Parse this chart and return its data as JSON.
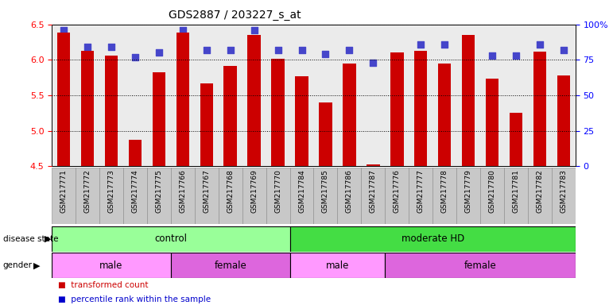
{
  "title": "GDS2887 / 203227_s_at",
  "samples": [
    "GSM217771",
    "GSM217772",
    "GSM217773",
    "GSM217774",
    "GSM217775",
    "GSM217766",
    "GSM217767",
    "GSM217768",
    "GSM217769",
    "GSM217770",
    "GSM217784",
    "GSM217785",
    "GSM217786",
    "GSM217787",
    "GSM217776",
    "GSM217777",
    "GSM217778",
    "GSM217779",
    "GSM217780",
    "GSM217781",
    "GSM217782",
    "GSM217783"
  ],
  "bar_values": [
    6.38,
    6.13,
    6.06,
    4.87,
    5.83,
    6.38,
    5.67,
    5.92,
    6.35,
    6.01,
    5.77,
    5.4,
    5.95,
    4.53,
    6.1,
    6.13,
    5.95,
    6.35,
    5.73,
    5.25,
    6.12,
    5.78
  ],
  "percentile_values": [
    96,
    84,
    84,
    77,
    80,
    96,
    82,
    82,
    96,
    82,
    82,
    79,
    82,
    73,
    74,
    86,
    86,
    82,
    78,
    78,
    86,
    82
  ],
  "ylim_left": [
    4.5,
    6.5
  ],
  "ylim_right": [
    0,
    100
  ],
  "yticks_left": [
    4.5,
    5.0,
    5.5,
    6.0,
    6.5
  ],
  "yticks_right": [
    0,
    25,
    50,
    75,
    100
  ],
  "bar_color": "#CC0000",
  "dot_color": "#0000CC",
  "disease_state_groups": [
    {
      "label": "control",
      "start": 0,
      "end": 10,
      "color": "#99FF99"
    },
    {
      "label": "moderate HD",
      "start": 10,
      "end": 22,
      "color": "#44DD44"
    }
  ],
  "gender_groups": [
    {
      "label": "male",
      "start": 0,
      "end": 5,
      "color": "#FF99FF"
    },
    {
      "label": "female",
      "start": 5,
      "end": 10,
      "color": "#DD66DD"
    },
    {
      "label": "male",
      "start": 10,
      "end": 14,
      "color": "#FF99FF"
    },
    {
      "label": "female",
      "start": 14,
      "end": 22,
      "color": "#DD66DD"
    }
  ],
  "background_color": "#FFFFFF",
  "bar_width": 0.55,
  "dot_size": 30,
  "label_col_color": "#C8C8C8",
  "label_col_edge": "#888888"
}
